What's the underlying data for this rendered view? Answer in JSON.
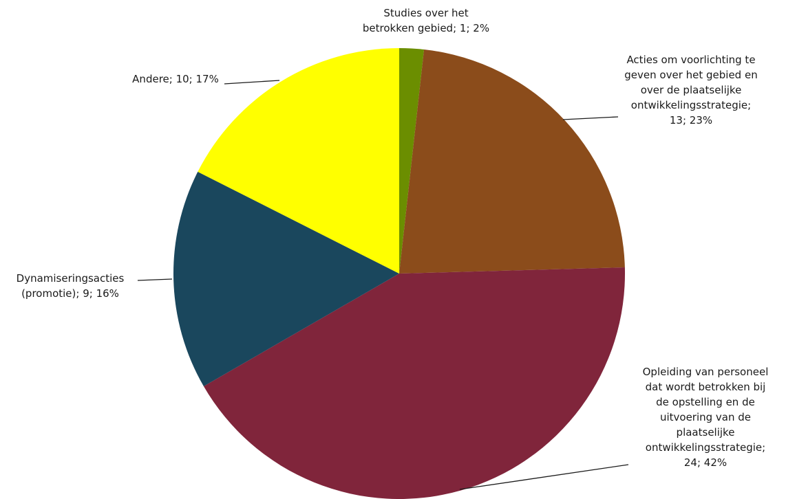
{
  "chart_data": {
    "type": "pie",
    "start_angle_deg": 0,
    "direction": "clockwise",
    "slices": [
      {
        "label": "Studies over het\nbetrokken gebied; 1; 2%",
        "category": "Studies over het betrokken gebied",
        "value": 1,
        "percent": 2,
        "color": "#6b8e00"
      },
      {
        "label": "Acties om voorlichting te\ngeven over het gebied en\nover de plaatselijke\nontwikkelingsstrategie;\n13; 23%",
        "category": "Acties om voorlichting te geven over het gebied en over de plaatselijke ontwikkelingsstrategie",
        "value": 13,
        "percent": 23,
        "color": "#8b4c1b"
      },
      {
        "label": "Opleiding van personeel\ndat wordt betrokken bij\nde opstelling en de\nuitvoering van de\nplaatselijke\nontwikkelingsstrategie;\n24; 42%",
        "category": "Opleiding van personeel dat wordt betrokken bij de opstelling en de uitvoering van de plaatselijke ontwikkelingsstrategie",
        "value": 24,
        "percent": 42,
        "color": "#80253b"
      },
      {
        "label": "Dynamiseringsacties\n(promotie); 9; 16%",
        "category": "Dynamiseringsacties (promotie)",
        "value": 9,
        "percent": 16,
        "color": "#1a475d"
      },
      {
        "label": "Andere; 10; 17%",
        "category": "Andere",
        "value": 10,
        "percent": 17,
        "color": "#ffff00"
      }
    ]
  }
}
